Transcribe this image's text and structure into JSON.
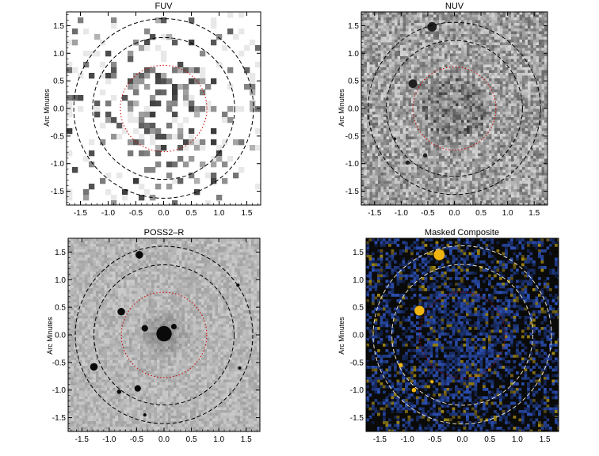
{
  "figure": {
    "panels": [
      {
        "title": "FUV",
        "ylabel": "Arc Minutes",
        "style": "sparse-gray"
      },
      {
        "title": "NUV",
        "ylabel": "Arc Minutes",
        "style": "noise-gray"
      },
      {
        "title": "POSS2–R",
        "ylabel": "Arc Minutes",
        "style": "optical-gray"
      },
      {
        "title": "Masked Composite",
        "ylabel": "Arc Minutes",
        "style": "color-composite"
      }
    ]
  },
  "chart_data": [
    {
      "type": "heatmap",
      "title": "FUV",
      "xlabel": "",
      "ylabel": "Arc Minutes",
      "xlim": [
        -1.75,
        1.75
      ],
      "ylim": [
        -1.75,
        1.75
      ],
      "xticks": [
        "-1.5",
        "-1.0",
        "-0.5",
        "0.0",
        "0.5",
        "1.0",
        "1.5"
      ],
      "yticks": [
        "1.5",
        "1.0",
        "0.5",
        "0.0",
        "-0.5",
        "-1.0",
        "-1.5"
      ],
      "circles": [
        {
          "radius": 0.78,
          "color": "#cc0000",
          "style": "dotted"
        },
        {
          "radius": 1.28,
          "color": "#000000",
          "style": "dashed"
        },
        {
          "radius": 1.62,
          "color": "#000000",
          "style": "dashed"
        }
      ],
      "sources": []
    },
    {
      "type": "heatmap",
      "title": "NUV",
      "xlabel": "",
      "ylabel": "Arc Minutes",
      "xlim": [
        -1.75,
        1.75
      ],
      "ylim": [
        -1.75,
        1.75
      ],
      "xticks": [
        "-1.5",
        "-1.0",
        "-0.5",
        "0.0",
        "0.5",
        "1.0",
        "1.5"
      ],
      "yticks": [
        "1.5",
        "1.0",
        "0.5",
        "0.0",
        "-0.5",
        "-1.0",
        "-1.5"
      ],
      "circles": [
        {
          "radius": 0.78,
          "color": "#cc0000",
          "style": "dotted"
        },
        {
          "radius": 1.28,
          "color": "#000000",
          "style": "dashed"
        },
        {
          "radius": 1.62,
          "color": "#000000",
          "style": "dashed"
        }
      ],
      "sources": [
        {
          "x": -0.42,
          "y": 1.48,
          "r": 0.09
        },
        {
          "x": -0.78,
          "y": 0.45,
          "r": 0.08
        },
        {
          "x": -0.55,
          "y": -0.85,
          "r": 0.04
        },
        {
          "x": -0.88,
          "y": -0.98,
          "r": 0.04
        },
        {
          "x": -1.12,
          "y": -0.55,
          "r": 0.03
        }
      ]
    },
    {
      "type": "heatmap",
      "title": "POSS2–R",
      "xlabel": "",
      "ylabel": "Arc Minutes",
      "xlim": [
        -1.75,
        1.75
      ],
      "ylim": [
        -1.75,
        1.75
      ],
      "xticks": [
        "-1.5",
        "-1.0",
        "-0.5",
        "0.0",
        "0.5",
        "1.0",
        "1.5"
      ],
      "yticks": [
        "1.5",
        "1.0",
        "0.5",
        "0.0",
        "-0.5",
        "-1.0",
        "-1.5"
      ],
      "circles": [
        {
          "radius": 0.78,
          "color": "#cc0000",
          "style": "dotted"
        },
        {
          "radius": 1.28,
          "color": "#000000",
          "style": "dashed"
        },
        {
          "radius": 1.62,
          "color": "#000000",
          "style": "dashed"
        }
      ],
      "sources": [
        {
          "x": -0.45,
          "y": 1.45,
          "r": 0.07
        },
        {
          "x": -0.78,
          "y": 0.42,
          "r": 0.07
        },
        {
          "x": -0.35,
          "y": 0.12,
          "r": 0.06
        },
        {
          "x": 0.18,
          "y": 0.15,
          "r": 0.05
        },
        {
          "x": 0.0,
          "y": 0.02,
          "r": 0.14
        },
        {
          "x": -1.28,
          "y": -0.58,
          "r": 0.07
        },
        {
          "x": -0.48,
          "y": -0.97,
          "r": 0.06
        },
        {
          "x": -0.82,
          "y": -1.03,
          "r": 0.04
        },
        {
          "x": 1.35,
          "y": 0.9,
          "r": 0.03
        },
        {
          "x": 1.38,
          "y": -0.6,
          "r": 0.03
        },
        {
          "x": -0.35,
          "y": -1.45,
          "r": 0.03
        }
      ]
    },
    {
      "type": "heatmap",
      "title": "Masked Composite",
      "xlabel": "",
      "ylabel": "Arc Minutes",
      "xlim": [
        -1.75,
        1.75
      ],
      "ylim": [
        -1.75,
        1.75
      ],
      "xticks": [
        "-1.5",
        "-1.0",
        "-0.5",
        "0.0",
        "0.5",
        "1.0",
        "1.5"
      ],
      "yticks": [
        "1.5",
        "1.0",
        "0.5",
        "0.0",
        "-0.5",
        "-1.0",
        "-1.5"
      ],
      "circles": [
        {
          "radius": 0.78,
          "color": "#b01010",
          "style": "dotted"
        },
        {
          "radius": 1.28,
          "color": "#e8e0c8",
          "style": "dashed"
        },
        {
          "radius": 1.62,
          "color": "#e8e0c8",
          "style": "dashed"
        }
      ],
      "sources": [
        {
          "x": -0.42,
          "y": 1.45,
          "r": 0.1
        },
        {
          "x": -0.78,
          "y": 0.44,
          "r": 0.09
        },
        {
          "x": -1.12,
          "y": -0.55,
          "r": 0.04
        },
        {
          "x": -0.88,
          "y": -1.0,
          "r": 0.04
        },
        {
          "x": -0.55,
          "y": -0.85,
          "r": 0.03
        }
      ]
    }
  ]
}
